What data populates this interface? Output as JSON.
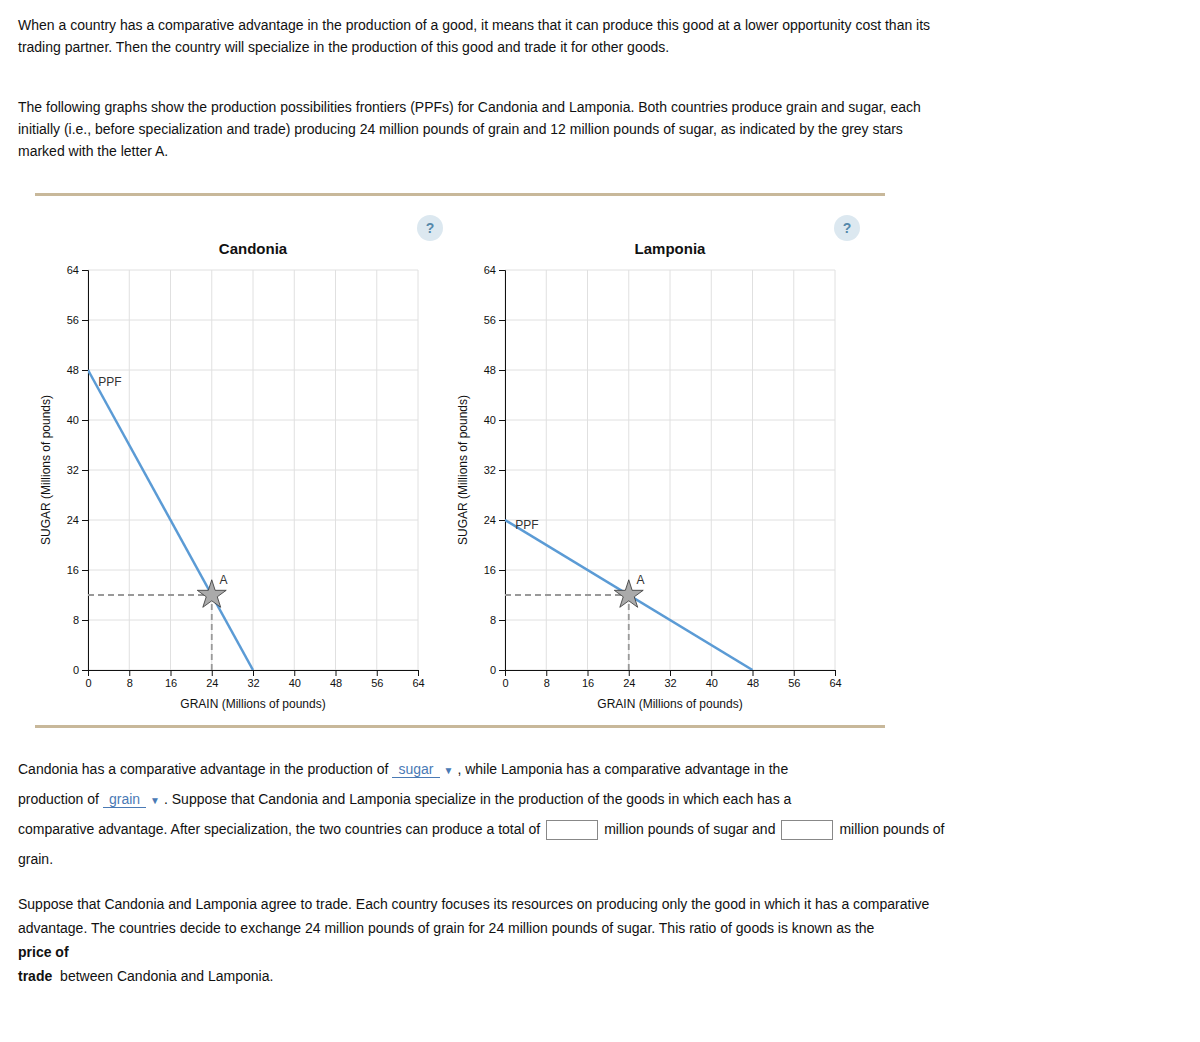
{
  "chart_data": [
    {
      "type": "line",
      "title": "Candonia",
      "x_label": "GRAIN (Millions of pounds)",
      "y_label": "SUGAR (Millions of pounds)",
      "xlim": [
        0,
        64
      ],
      "ylim": [
        0,
        64
      ],
      "xticks": [
        0,
        8,
        16,
        24,
        32,
        40,
        48,
        56,
        64
      ],
      "yticks": [
        0,
        8,
        16,
        24,
        32,
        40,
        48,
        56,
        64
      ],
      "grid": true,
      "series": [
        {
          "type": "line",
          "x": [
            0,
            32
          ],
          "values": [
            48,
            0
          ],
          "color": "#5b9bd5"
        },
        {
          "type": "scatter",
          "marker": "star",
          "x": [
            24
          ],
          "values": [
            12
          ],
          "color": "#aaaaaa"
        }
      ],
      "annotations": [
        {
          "text": "PPF",
          "x": 2.0,
          "y": 45.5
        },
        {
          "text": "A",
          "x": 25.5,
          "y": 13.8
        }
      ]
    },
    {
      "type": "line",
      "title": "Lamponia",
      "x_label": "GRAIN (Millions of pounds)",
      "y_label": "SUGAR (Millions of pounds)",
      "xlim": [
        0,
        64
      ],
      "ylim": [
        0,
        64
      ],
      "xticks": [
        0,
        8,
        16,
        24,
        32,
        40,
        48,
        56,
        64
      ],
      "yticks": [
        0,
        8,
        16,
        24,
        32,
        40,
        48,
        56,
        64
      ],
      "grid": true,
      "series": [
        {
          "type": "line",
          "x": [
            0,
            48
          ],
          "values": [
            24,
            0
          ],
          "color": "#5b9bd5"
        },
        {
          "type": "scatter",
          "marker": "star",
          "x": [
            24
          ],
          "values": [
            12
          ],
          "color": "#aaaaaa"
        }
      ],
      "annotations": [
        {
          "text": "PPF",
          "x": 2.0,
          "y": 22.5
        },
        {
          "text": "A",
          "x": 25.5,
          "y": 13.8
        }
      ]
    }
  ],
  "page_text": {
    "intro": [
      [
        "When a country has a comparative advantage in the production of a good, it means that it can produce this good at a lower opportunity cost than its",
        "trading partner. Then the country will specialize in the production of this good and trade it for other goods."
      ],
      [
        "The following graphs show the production possibilities frontiers (PPFs) for Candonia and Lamponia. Both countries produce grain and sugar, each",
        "initially (i.e., before specialization and trade) producing 24 million pounds of grain and 12 million pounds of sugar, as indicated by the grey stars",
        "marked with the letter A."
      ]
    ],
    "help_icons": [
      "?",
      "?"
    ],
    "question": [
      [
        {
          "kind": "text",
          "text": "Candonia has a comparative advantage in the production of"
        },
        {
          "kind": "choice",
          "text": "sugar"
        },
        {
          "kind": "arrow",
          "text": "▼"
        },
        {
          "kind": "text",
          "text": ", while Lamponia has a comparative advantage in the"
        }
      ],
      [
        {
          "kind": "text",
          "text": "production of"
        },
        {
          "kind": "choice",
          "text": "grain"
        },
        {
          "kind": "arrow",
          "text": "▼"
        },
        {
          "kind": "text",
          "text": ". Suppose that Candonia and Lamponia specialize in the production of the goods in which each has a"
        }
      ],
      [
        {
          "kind": "text",
          "text": "comparative advantage. After specialization, the two countries can produce a total of"
        },
        {
          "kind": "blank"
        },
        {
          "kind": "text",
          "text": "million pounds of sugar and"
        },
        {
          "kind": "blank"
        },
        {
          "kind": "text",
          "text": "million pounds of"
        }
      ],
      [
        {
          "kind": "text",
          "text": "grain."
        }
      ]
    ],
    "trade": [
      [
        {
          "kind": "text",
          "text": "Suppose that Candonia and Lamponia agree to trade. Each country focuses its resources on producing only the good in which it has a comparative"
        }
      ],
      [
        {
          "kind": "text",
          "text": "advantage. The countries decide to exchange 24 million pounds of grain for 24 million pounds of sugar. This ratio of goods is known as the"
        }
      ],
      [
        {
          "kind": "bold",
          "text": "price of"
        }
      ],
      [
        {
          "kind": "bold",
          "text": "trade"
        },
        {
          "kind": "text",
          "text": " between Candonia and Lamponia."
        }
      ]
    ]
  }
}
